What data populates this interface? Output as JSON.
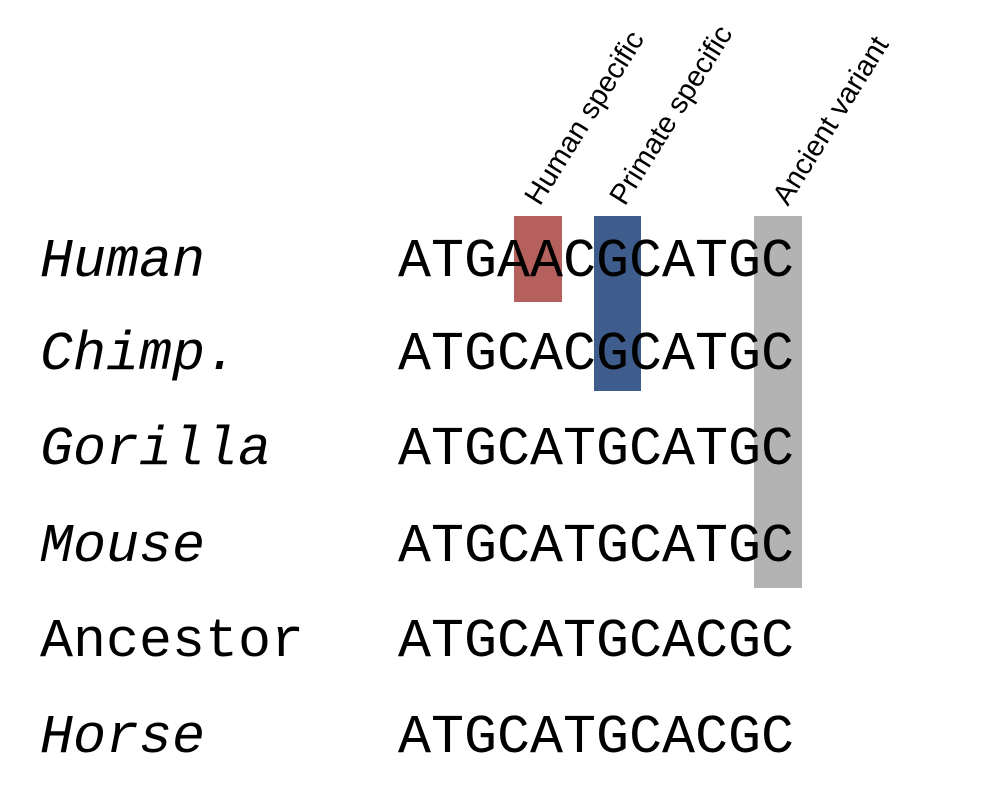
{
  "highlights": [
    {
      "label": "Human specific",
      "color": "#b5605c"
    },
    {
      "label": "Primate specific",
      "color": "#3f5d8c"
    },
    {
      "label": "Ancient variant",
      "color": "#b3b3b3"
    }
  ],
  "rows": [
    {
      "species": "Human",
      "italic": true,
      "sequence": "ATGAACGCATGC"
    },
    {
      "species": "Chimp.",
      "italic": true,
      "sequence": "ATGCACGCATGC"
    },
    {
      "species": "Gorilla",
      "italic": true,
      "sequence": "ATGCATGCATGC"
    },
    {
      "species": "Mouse",
      "italic": true,
      "sequence": "ATGCATGCATGC"
    },
    {
      "species": "Ancestor",
      "italic": false,
      "sequence": "ATGCATGCACGC"
    },
    {
      "species": "Horse",
      "italic": true,
      "sequence": "ATGCATGCACGC"
    }
  ]
}
